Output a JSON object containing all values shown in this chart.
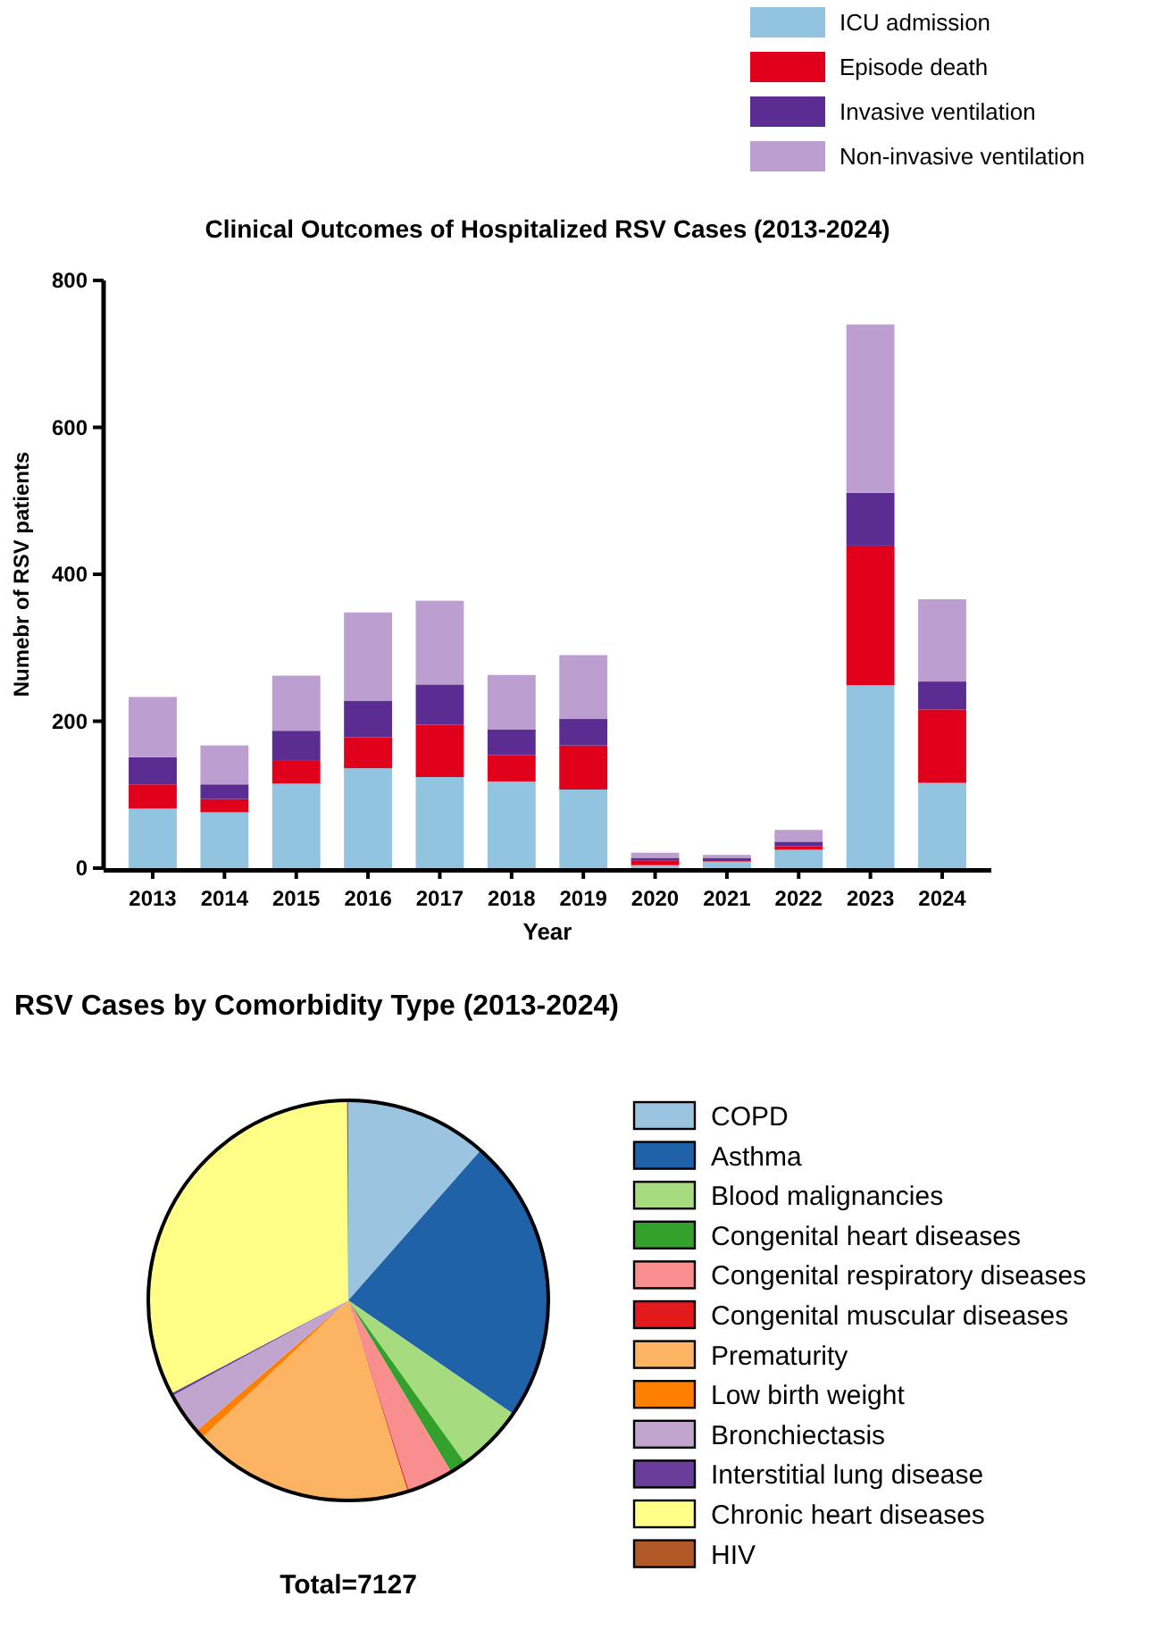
{
  "chart_data": [
    {
      "type": "bar",
      "title": "Clinical Outcomes of Hospitalized RSV Cases (2013-2024)",
      "xlabel": "Year",
      "ylabel": "Numebr of RSV patients",
      "categories": [
        "2013",
        "2014",
        "2015",
        "2016",
        "2017",
        "2018",
        "2019",
        "2020",
        "2021",
        "2022",
        "2023",
        "2024"
      ],
      "stacked": true,
      "ylim": [
        0,
        800
      ],
      "yticks": [
        0,
        200,
        400,
        600,
        800
      ],
      "legend": "top right",
      "series": [
        {
          "name": "ICU admission",
          "color": "#93c4df",
          "values": [
            81,
            76,
            115,
            136,
            124,
            118,
            107,
            4,
            9,
            25,
            249,
            116
          ]
        },
        {
          "name": "Episode death",
          "color": "#e0001b",
          "values": [
            33,
            18,
            32,
            42,
            71,
            36,
            60,
            6,
            2,
            5,
            190,
            100
          ]
        },
        {
          "name": "Invasive ventilation",
          "color": "#5b2c91",
          "values": [
            37,
            20,
            40,
            50,
            55,
            35,
            36,
            4,
            3,
            6,
            72,
            38
          ]
        },
        {
          "name": "Non-invasive ventilation",
          "color": "#bc9fd0",
          "values": [
            82,
            53,
            75,
            120,
            114,
            74,
            87,
            7,
            4,
            16,
            229,
            112
          ]
        }
      ]
    },
    {
      "type": "pie",
      "title": "RSV Cases by Comorbidity Type (2013-2024)",
      "legend": "right",
      "annotations": [
        "Total=7127"
      ],
      "categories": [
        "COPD",
        "Asthma",
        "Blood malignancies",
        "Congenital heart diseases",
        "Congenital respiratory diseases",
        "Congenital muscular diseases",
        "Prematurity",
        "Low birth weight",
        "Bronchiectasis",
        "Interstitial lung disease",
        "Chronic heart diseases",
        "HIV"
      ],
      "values": [
        11.5,
        23.1,
        5.5,
        1.3,
        3.7,
        0.1,
        17.8,
        0.7,
        3.4,
        0.2,
        32.6,
        0.1
      ],
      "colors": [
        "#9ac4e0",
        "#1f62a8",
        "#a6db7e",
        "#33a02c",
        "#f88e8e",
        "#e31a1c",
        "#fdb462",
        "#ff7f00",
        "#c2a5cf",
        "#6a3d9a",
        "#ffff88",
        "#b15928"
      ]
    }
  ]
}
